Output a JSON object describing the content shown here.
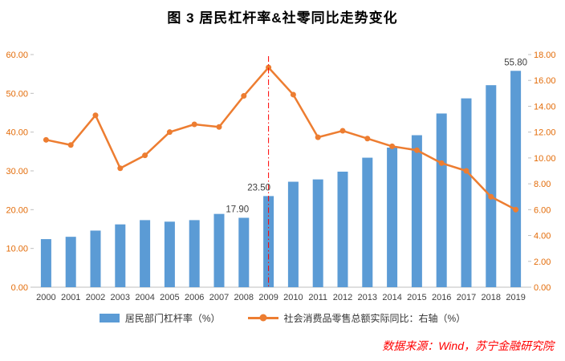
{
  "title": "图 3  居民杠杆率&社零同比走势变化",
  "legend": {
    "bar_label": "居民部门杠杆率（%）",
    "line_label": "社会消费品零售总额实际同比：右轴（%）"
  },
  "source": "数据来源：Wind，苏宁金融研究院",
  "colors": {
    "bar": "#5B9BD5",
    "line": "#ED7D31",
    "axis_text": "#E36C09",
    "x_axis_text": "#404040",
    "annotation_text": "#404040",
    "axis_line": "#BFBFBF",
    "marker_line": "#FF0000",
    "source_text": "#FF0000"
  },
  "chart_data": {
    "type": "combo",
    "title": "图 3  居民杠杆率&社零同比走势变化",
    "categories": [
      "2000",
      "2001",
      "2002",
      "2003",
      "2004",
      "2005",
      "2006",
      "2007",
      "2008",
      "2009",
      "2010",
      "2011",
      "2012",
      "2013",
      "2014",
      "2015",
      "2016",
      "2017",
      "2018",
      "2019"
    ],
    "series": [
      {
        "name": "居民部门杠杆率（%）",
        "type": "bar",
        "axis": "left",
        "values": [
          12.4,
          13.0,
          14.6,
          16.2,
          17.3,
          16.9,
          17.3,
          18.9,
          17.9,
          23.5,
          27.2,
          27.8,
          29.8,
          33.4,
          36.0,
          39.2,
          44.8,
          48.7,
          52.1,
          55.8
        ]
      },
      {
        "name": "社会消费品零售总额实际同比：右轴（%）",
        "type": "line",
        "axis": "right",
        "values": [
          11.4,
          11.0,
          13.3,
          9.2,
          10.2,
          12.0,
          12.6,
          12.4,
          14.8,
          17.0,
          14.9,
          11.6,
          12.1,
          11.5,
          10.9,
          10.6,
          9.6,
          9.0,
          7.0,
          6.0
        ]
      }
    ],
    "left_axis": {
      "min": 0,
      "max": 60,
      "step": 10
    },
    "right_axis": {
      "min": 0,
      "max": 18,
      "step": 2
    },
    "annotations": [
      {
        "category": "2008",
        "text": "17.90",
        "dx": -8
      },
      {
        "category": "2009",
        "text": "23.50",
        "dx": -12
      },
      {
        "category": "2019",
        "text": "55.80",
        "dx": 0
      }
    ],
    "vline_category": "2009",
    "grid": false,
    "legend_position": "bottom"
  }
}
